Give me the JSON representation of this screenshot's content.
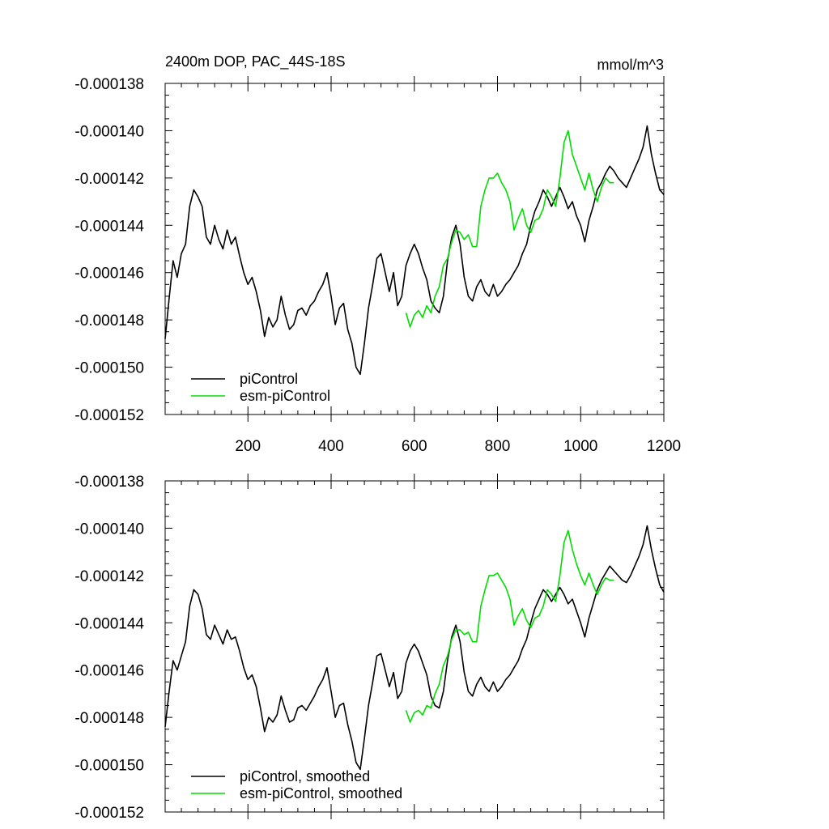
{
  "header": {
    "title": "2400m DOP, PAC_44S-18S",
    "units": "mmol/m^3"
  },
  "colors": {
    "piControl": "#000000",
    "esm_piControl": "#00dd00",
    "frame": "#000000",
    "background": "#ffffff"
  },
  "chart_data": [
    {
      "type": "line",
      "title": "2400m DOP, PAC_44S-18S",
      "units_label": "mmol/m^3",
      "xlabel": "",
      "ylabel": "",
      "xlim": [
        1,
        1200
      ],
      "ylim": [
        -0.000152,
        -0.000138
      ],
      "x_ticks": [
        200,
        400,
        600,
        800,
        1000,
        1200
      ],
      "x_tick_labels": [
        "200",
        "400",
        "600",
        "800",
        "1000",
        "1200"
      ],
      "y_ticks": [
        -0.000138,
        -0.00014,
        -0.000142,
        -0.000144,
        -0.000146,
        -0.000148,
        -0.00015,
        -0.000152
      ],
      "y_tick_labels": [
        "-0.000138",
        "-0.000140",
        "-0.000142",
        "-0.000144",
        "-0.000146",
        "-0.000148",
        "-0.000150",
        "-0.000152"
      ],
      "grid": false,
      "legend_position": "bottom-left",
      "legend": [
        "piControl",
        "esm-piControl"
      ],
      "series": [
        {
          "name": "piControl",
          "x": [
            1,
            10,
            20,
            30,
            40,
            50,
            60,
            70,
            80,
            90,
            100,
            110,
            120,
            130,
            140,
            150,
            160,
            170,
            180,
            190,
            200,
            210,
            220,
            230,
            240,
            250,
            260,
            270,
            280,
            290,
            300,
            310,
            320,
            330,
            340,
            350,
            360,
            370,
            380,
            390,
            400,
            410,
            420,
            430,
            440,
            450,
            460,
            470,
            480,
            490,
            500,
            510,
            520,
            530,
            540,
            550,
            560,
            570,
            580,
            590,
            600,
            610,
            620,
            630,
            640,
            650,
            660,
            670,
            680,
            690,
            700,
            710,
            720,
            730,
            740,
            750,
            760,
            770,
            780,
            790,
            800,
            810,
            820,
            830,
            840,
            850,
            860,
            870,
            880,
            890,
            900,
            910,
            920,
            930,
            940,
            950,
            960,
            970,
            980,
            990,
            1000,
            1010,
            1020,
            1030,
            1040,
            1050,
            1060,
            1070,
            1080,
            1090,
            1100,
            1110,
            1120,
            1130,
            1140,
            1150,
            1160,
            1170,
            1180,
            1190,
            1200
          ],
          "values": [
            -0.0001488,
            -0.0001472,
            -0.0001455,
            -0.0001462,
            -0.0001452,
            -0.0001448,
            -0.0001432,
            -0.0001425,
            -0.0001428,
            -0.0001432,
            -0.0001445,
            -0.0001448,
            -0.000144,
            -0.0001446,
            -0.000145,
            -0.0001442,
            -0.0001448,
            -0.0001445,
            -0.0001453,
            -0.000146,
            -0.0001465,
            -0.0001462,
            -0.0001468,
            -0.0001476,
            -0.0001487,
            -0.0001479,
            -0.0001483,
            -0.000148,
            -0.000147,
            -0.0001478,
            -0.0001484,
            -0.0001482,
            -0.0001476,
            -0.0001475,
            -0.0001478,
            -0.0001474,
            -0.0001472,
            -0.0001468,
            -0.0001465,
            -0.000146,
            -0.000147,
            -0.0001482,
            -0.0001475,
            -0.0001473,
            -0.0001484,
            -0.000149,
            -0.00015,
            -0.0001503,
            -0.000149,
            -0.0001475,
            -0.0001465,
            -0.0001454,
            -0.0001452,
            -0.000146,
            -0.0001468,
            -0.000146,
            -0.0001474,
            -0.000147,
            -0.0001457,
            -0.0001452,
            -0.0001448,
            -0.0001452,
            -0.0001458,
            -0.0001463,
            -0.0001472,
            -0.0001475,
            -0.0001477,
            -0.000147,
            -0.0001455,
            -0.0001445,
            -0.000144,
            -0.0001448,
            -0.0001462,
            -0.000147,
            -0.0001472,
            -0.0001466,
            -0.0001463,
            -0.0001468,
            -0.000147,
            -0.0001465,
            -0.000147,
            -0.0001468,
            -0.0001465,
            -0.0001463,
            -0.000146,
            -0.0001457,
            -0.0001452,
            -0.0001448,
            -0.000144,
            -0.0001434,
            -0.000143,
            -0.0001425,
            -0.0001428,
            -0.0001432,
            -0.0001428,
            -0.0001424,
            -0.0001428,
            -0.0001433,
            -0.000143,
            -0.0001436,
            -0.000144,
            -0.0001447,
            -0.0001438,
            -0.0001432,
            -0.0001425,
            -0.0001422,
            -0.0001418,
            -0.0001415,
            -0.0001417,
            -0.000142,
            -0.0001422,
            -0.0001424,
            -0.000142,
            -0.0001416,
            -0.0001412,
            -0.0001407,
            -0.0001398,
            -0.000141,
            -0.0001418,
            -0.0001425,
            -0.0001427
          ]
        },
        {
          "name": "esm-piControl",
          "x": [
            580,
            590,
            600,
            610,
            620,
            630,
            640,
            650,
            660,
            670,
            680,
            690,
            700,
            710,
            720,
            730,
            740,
            750,
            760,
            770,
            780,
            790,
            800,
            810,
            820,
            830,
            840,
            850,
            860,
            870,
            880,
            890,
            900,
            910,
            920,
            930,
            940,
            950,
            960,
            970,
            980,
            990,
            1000,
            1010,
            1020,
            1030,
            1040,
            1050,
            1060,
            1070,
            1080
          ],
          "values": [
            -0.0001477,
            -0.0001483,
            -0.0001478,
            -0.0001476,
            -0.0001479,
            -0.0001474,
            -0.0001477,
            -0.000147,
            -0.0001466,
            -0.0001457,
            -0.0001454,
            -0.0001447,
            -0.0001442,
            -0.0001443,
            -0.0001446,
            -0.0001444,
            -0.0001449,
            -0.0001449,
            -0.0001432,
            -0.0001425,
            -0.000142,
            -0.000142,
            -0.0001418,
            -0.0001422,
            -0.0001425,
            -0.000143,
            -0.0001442,
            -0.0001437,
            -0.0001433,
            -0.000144,
            -0.0001443,
            -0.0001438,
            -0.0001437,
            -0.0001433,
            -0.0001425,
            -0.0001428,
            -0.0001432,
            -0.000142,
            -0.0001405,
            -0.00014,
            -0.000141,
            -0.0001415,
            -0.000142,
            -0.0001425,
            -0.0001418,
            -0.0001425,
            -0.000143,
            -0.0001424,
            -0.000142,
            -0.0001422,
            -0.0001422
          ]
        }
      ]
    },
    {
      "type": "line",
      "title": "",
      "xlabel": "",
      "ylabel": "",
      "xlim": [
        1,
        1200
      ],
      "ylim": [
        -0.000152,
        -0.000138
      ],
      "x_ticks": [
        200,
        400,
        600,
        800,
        1000,
        1200
      ],
      "y_ticks": [
        -0.000138,
        -0.00014,
        -0.000142,
        -0.000144,
        -0.000146,
        -0.000148,
        -0.00015,
        -0.000152
      ],
      "y_tick_labels": [
        "-0.000138",
        "-0.000140",
        "-0.000142",
        "-0.000144",
        "-0.000146",
        "-0.000148",
        "-0.000150",
        "-0.000152"
      ],
      "grid": false,
      "legend_position": "bottom-left",
      "legend": [
        "piControl, smoothed",
        "esm-piControl, smoothed"
      ],
      "series": [
        {
          "name": "piControl, smoothed",
          "x": [
            1,
            10,
            20,
            30,
            40,
            50,
            60,
            70,
            80,
            90,
            100,
            110,
            120,
            130,
            140,
            150,
            160,
            170,
            180,
            190,
            200,
            210,
            220,
            230,
            240,
            250,
            260,
            270,
            280,
            290,
            300,
            310,
            320,
            330,
            340,
            350,
            360,
            370,
            380,
            390,
            400,
            410,
            420,
            430,
            440,
            450,
            460,
            470,
            480,
            490,
            500,
            510,
            520,
            530,
            540,
            550,
            560,
            570,
            580,
            590,
            600,
            610,
            620,
            630,
            640,
            650,
            660,
            670,
            680,
            690,
            700,
            710,
            720,
            730,
            740,
            750,
            760,
            770,
            780,
            790,
            800,
            810,
            820,
            830,
            840,
            850,
            860,
            870,
            880,
            890,
            900,
            910,
            920,
            930,
            940,
            950,
            960,
            970,
            980,
            990,
            1000,
            1010,
            1020,
            1030,
            1040,
            1050,
            1060,
            1070,
            1080,
            1090,
            1100,
            1110,
            1120,
            1130,
            1140,
            1150,
            1160,
            1170,
            1180,
            1190,
            1200
          ],
          "values": [
            -0.0001484,
            -0.000147,
            -0.0001456,
            -0.000146,
            -0.0001454,
            -0.0001448,
            -0.0001433,
            -0.0001426,
            -0.0001428,
            -0.0001434,
            -0.0001445,
            -0.0001447,
            -0.0001441,
            -0.0001445,
            -0.0001449,
            -0.0001443,
            -0.0001447,
            -0.0001446,
            -0.0001452,
            -0.0001459,
            -0.0001464,
            -0.0001462,
            -0.0001467,
            -0.0001476,
            -0.0001486,
            -0.000148,
            -0.0001482,
            -0.0001479,
            -0.0001471,
            -0.0001477,
            -0.0001482,
            -0.0001481,
            -0.0001476,
            -0.0001475,
            -0.0001477,
            -0.0001474,
            -0.0001471,
            -0.0001467,
            -0.0001464,
            -0.0001459,
            -0.0001469,
            -0.000148,
            -0.0001475,
            -0.0001474,
            -0.0001483,
            -0.000149,
            -0.0001499,
            -0.0001502,
            -0.0001489,
            -0.0001475,
            -0.0001465,
            -0.0001454,
            -0.0001453,
            -0.000146,
            -0.0001467,
            -0.0001461,
            -0.0001472,
            -0.0001469,
            -0.0001457,
            -0.0001452,
            -0.0001449,
            -0.0001452,
            -0.0001457,
            -0.0001462,
            -0.0001471,
            -0.0001475,
            -0.0001476,
            -0.0001469,
            -0.0001456,
            -0.0001446,
            -0.0001441,
            -0.0001448,
            -0.0001461,
            -0.0001469,
            -0.0001471,
            -0.0001466,
            -0.0001463,
            -0.0001467,
            -0.0001469,
            -0.0001465,
            -0.0001469,
            -0.0001467,
            -0.0001464,
            -0.0001462,
            -0.0001459,
            -0.0001456,
            -0.0001451,
            -0.0001447,
            -0.000144,
            -0.0001434,
            -0.000143,
            -0.0001426,
            -0.0001428,
            -0.0001431,
            -0.0001428,
            -0.0001425,
            -0.0001428,
            -0.0001432,
            -0.000143,
            -0.0001435,
            -0.000144,
            -0.0001446,
            -0.0001438,
            -0.0001432,
            -0.0001426,
            -0.0001422,
            -0.0001419,
            -0.0001416,
            -0.0001418,
            -0.000142,
            -0.0001422,
            -0.0001423,
            -0.000142,
            -0.0001416,
            -0.0001412,
            -0.0001407,
            -0.0001399,
            -0.0001409,
            -0.0001417,
            -0.0001424,
            -0.0001427
          ]
        },
        {
          "name": "esm-piControl, smoothed",
          "x": [
            580,
            590,
            600,
            610,
            620,
            630,
            640,
            650,
            660,
            670,
            680,
            690,
            700,
            710,
            720,
            730,
            740,
            750,
            760,
            770,
            780,
            790,
            800,
            810,
            820,
            830,
            840,
            850,
            860,
            870,
            880,
            890,
            900,
            910,
            920,
            930,
            940,
            950,
            960,
            970,
            980,
            990,
            1000,
            1010,
            1020,
            1030,
            1040,
            1050,
            1060,
            1070,
            1080
          ],
          "values": [
            -0.0001477,
            -0.0001482,
            -0.0001478,
            -0.0001477,
            -0.0001479,
            -0.0001475,
            -0.0001476,
            -0.000147,
            -0.0001466,
            -0.0001458,
            -0.0001454,
            -0.0001447,
            -0.0001443,
            -0.0001443,
            -0.0001445,
            -0.0001444,
            -0.0001448,
            -0.0001448,
            -0.0001433,
            -0.0001426,
            -0.000142,
            -0.000142,
            -0.0001419,
            -0.0001422,
            -0.0001425,
            -0.000143,
            -0.0001441,
            -0.0001437,
            -0.0001434,
            -0.0001439,
            -0.0001442,
            -0.0001438,
            -0.0001437,
            -0.0001433,
            -0.0001426,
            -0.0001428,
            -0.0001431,
            -0.000142,
            -0.0001406,
            -0.0001401,
            -0.0001409,
            -0.0001415,
            -0.000142,
            -0.0001424,
            -0.0001419,
            -0.0001424,
            -0.0001428,
            -0.0001424,
            -0.0001421,
            -0.0001422,
            -0.0001422
          ]
        }
      ]
    }
  ]
}
